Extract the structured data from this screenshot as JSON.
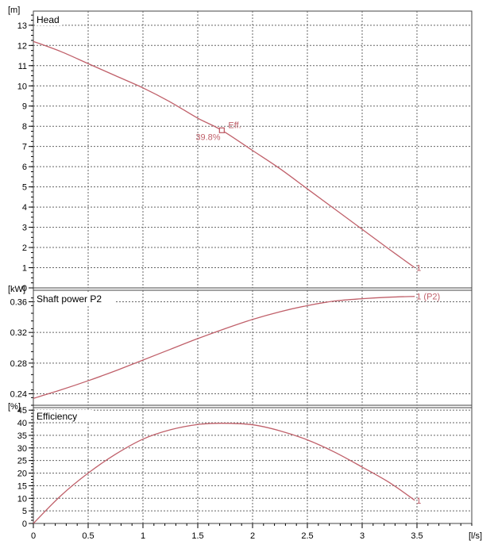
{
  "chart_data": {
    "type": "line",
    "x_unit": "[l/s]",
    "x_ticks": [
      "0",
      "0.5",
      "1",
      "1.5",
      "2",
      "2.5",
      "3",
      "3.5"
    ],
    "xlim": [
      0,
      4.0
    ],
    "curve_color": "#c0606a",
    "panels": [
      {
        "id": "head",
        "title": "Head",
        "unit": "[m]",
        "ylim": [
          0,
          13.7
        ],
        "y_ticks": [
          "0",
          "1",
          "2",
          "3",
          "4",
          "5",
          "6",
          "7",
          "8",
          "9",
          "10",
          "11",
          "12",
          "13"
        ],
        "series": [
          {
            "end_label": "1",
            "x": [
              0,
              0.25,
              0.5,
              0.75,
              1.0,
              1.25,
              1.5,
              1.72,
              2.0,
              2.25,
              2.5,
              2.75,
              3.0,
              3.25,
              3.48
            ],
            "y": [
              12.2,
              11.7,
              11.1,
              10.5,
              9.9,
              9.2,
              8.4,
              7.8,
              6.8,
              5.9,
              4.9,
              3.9,
              2.9,
              1.9,
              1.0
            ]
          }
        ],
        "marker": {
          "x": 1.72,
          "y": 7.8,
          "label": "Eff.",
          "value_label": "39.8%"
        }
      },
      {
        "id": "power",
        "title": "Shaft power P2",
        "unit": "[kW]",
        "ylim": [
          0.225,
          0.375
        ],
        "y_ticks": [
          "0.24",
          "0.28",
          "0.32",
          "0.36"
        ],
        "series": [
          {
            "end_label": "1 (P2)",
            "x": [
              0,
              0.25,
              0.5,
              0.75,
              1.0,
              1.25,
              1.5,
              1.75,
              2.0,
              2.25,
              2.5,
              2.75,
              3.0,
              3.25,
              3.48
            ],
            "y": [
              0.234,
              0.245,
              0.257,
              0.27,
              0.284,
              0.298,
              0.312,
              0.325,
              0.337,
              0.347,
              0.355,
              0.361,
              0.364,
              0.366,
              0.367
            ]
          }
        ]
      },
      {
        "id": "eff",
        "title": "Efficiency",
        "unit": "[%]",
        "ylim": [
          0,
          46
        ],
        "y_ticks": [
          "0",
          "5",
          "10",
          "15",
          "20",
          "25",
          "30",
          "35",
          "40",
          "45"
        ],
        "series": [
          {
            "end_label": "1",
            "x": [
              0,
              0.25,
              0.5,
              0.75,
              1.0,
              1.25,
              1.5,
              1.72,
              2.0,
              2.25,
              2.5,
              2.75,
              3.0,
              3.25,
              3.48
            ],
            "y": [
              0,
              11,
              20,
              27.5,
              33.5,
              37.2,
              39.3,
              39.8,
              39.2,
              36.8,
              33.2,
              28.3,
              22.4,
              16.2,
              9.2
            ]
          }
        ]
      }
    ]
  }
}
